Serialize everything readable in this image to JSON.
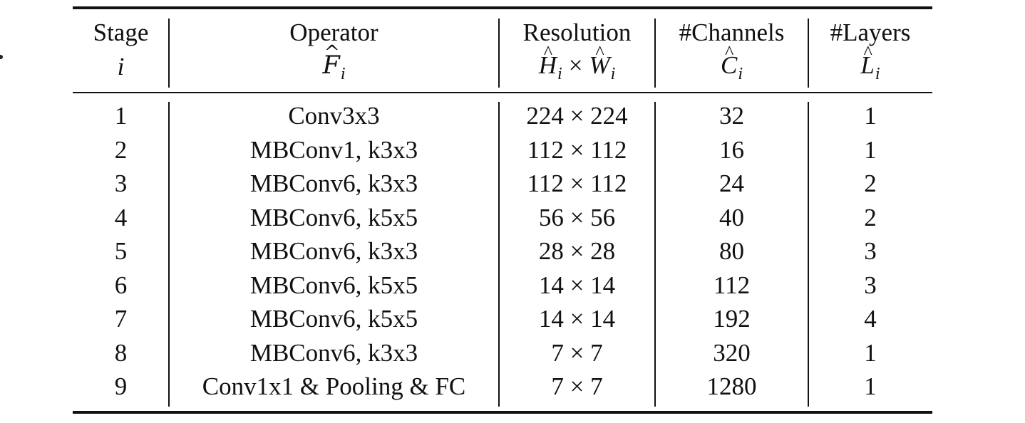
{
  "table": {
    "header": {
      "stage": {
        "title": "Stage",
        "symbol": "i"
      },
      "operator": {
        "title": "Operator",
        "symbol": "F",
        "subscript": "i"
      },
      "resolution": {
        "title": "Resolution",
        "symbol_h": "H",
        "symbol_w": "W",
        "subscript": "i",
        "times": "×"
      },
      "channels": {
        "title": "#Channels",
        "symbol": "C",
        "subscript": "i"
      },
      "layers": {
        "title": "#Layers",
        "symbol": "L",
        "subscript": "i"
      }
    },
    "rows": [
      {
        "stage": "1",
        "operator": "Conv3x3",
        "resolution": "224 × 224",
        "channels": "32",
        "layers": "1"
      },
      {
        "stage": "2",
        "operator": "MBConv1, k3x3",
        "resolution": "112 × 112",
        "channels": "16",
        "layers": "1"
      },
      {
        "stage": "3",
        "operator": "MBConv6, k3x3",
        "resolution": "112 × 112",
        "channels": "24",
        "layers": "2"
      },
      {
        "stage": "4",
        "operator": "MBConv6, k5x5",
        "resolution": "56 × 56",
        "channels": "40",
        "layers": "2"
      },
      {
        "stage": "5",
        "operator": "MBConv6, k3x3",
        "resolution": "28 × 28",
        "channels": "80",
        "layers": "3"
      },
      {
        "stage": "6",
        "operator": "MBConv6, k5x5",
        "resolution": "14 × 14",
        "channels": "112",
        "layers": "3"
      },
      {
        "stage": "7",
        "operator": "MBConv6, k5x5",
        "resolution": "14 × 14",
        "channels": "192",
        "layers": "4"
      },
      {
        "stage": "8",
        "operator": "MBConv6, k3x3",
        "resolution": "7 × 7",
        "channels": "320",
        "layers": "1"
      },
      {
        "stage": "9",
        "operator": "Conv1x1 & Pooling & FC",
        "resolution": "7 × 7",
        "channels": "1280",
        "layers": "1"
      }
    ]
  }
}
